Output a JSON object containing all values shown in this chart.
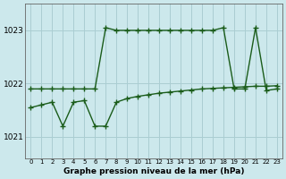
{
  "line1_x": [
    0,
    1,
    2,
    3,
    4,
    5,
    6,
    7,
    8,
    9,
    10,
    11,
    12,
    13,
    14,
    15,
    16,
    17,
    18,
    19,
    20,
    21,
    22,
    23
  ],
  "line1_y": [
    1021.9,
    1021.9,
    1021.9,
    1021.9,
    1021.9,
    1021.9,
    1021.9,
    1023.05,
    1023.0,
    1023.0,
    1023.0,
    1023.0,
    1023.0,
    1023.0,
    1023.0,
    1023.0,
    1023.0,
    1023.0,
    1023.05,
    1021.9,
    1021.9,
    1023.05,
    1021.87,
    1021.9
  ],
  "line2_x": [
    0,
    1,
    2,
    3,
    4,
    5,
    6,
    7,
    8,
    9,
    10,
    11,
    12,
    13,
    14,
    15,
    16,
    17,
    18,
    19,
    20,
    21,
    22,
    23
  ],
  "line2_y": [
    1021.55,
    1021.6,
    1021.65,
    1021.2,
    1021.65,
    1021.68,
    1021.2,
    1021.2,
    1021.65,
    1021.72,
    1021.76,
    1021.79,
    1021.82,
    1021.84,
    1021.86,
    1021.88,
    1021.9,
    1021.91,
    1021.92,
    1021.93,
    1021.94,
    1021.95,
    1021.95,
    1021.96
  ],
  "line_color": "#1a5c1a",
  "bg_color": "#cce8ec",
  "grid_color": "#aacdd2",
  "xlabel": "Graphe pression niveau de la mer (hPa)",
  "ylim": [
    1020.6,
    1023.5
  ],
  "yticks": [
    1021,
    1022,
    1023
  ],
  "xticks": [
    0,
    1,
    2,
    3,
    4,
    5,
    6,
    7,
    8,
    9,
    10,
    11,
    12,
    13,
    14,
    15,
    16,
    17,
    18,
    19,
    20,
    21,
    22,
    23
  ],
  "marker": "+",
  "markersize": 4,
  "linewidth": 1.0
}
